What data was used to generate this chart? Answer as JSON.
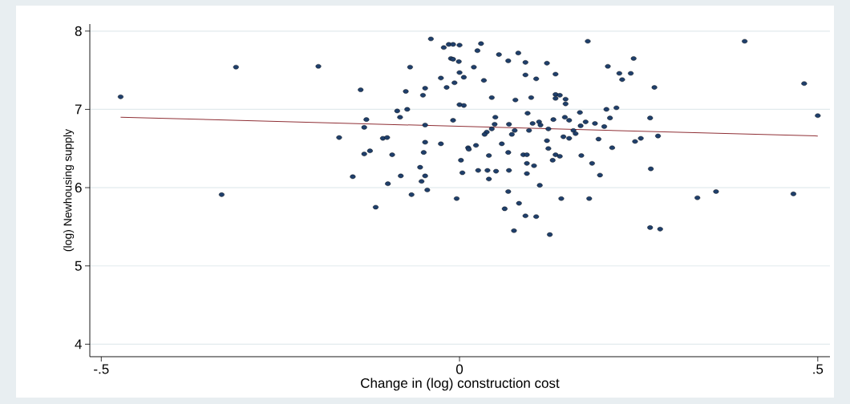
{
  "chart_data": {
    "type": "scatter",
    "xlabel": "Change in (log) construction cost",
    "ylabel": "(log) Newhousing supply",
    "xlim": [
      -0.516,
      0.517
    ],
    "ylim": [
      3.84,
      8.09
    ],
    "xticks": [
      {
        "value": -0.5,
        "label": "-.5"
      },
      0,
      {
        "value": 0.5,
        "label": ".5"
      }
    ],
    "yticks": [
      4,
      5,
      6,
      7,
      8
    ],
    "grid": "y",
    "series": [
      {
        "marker": "circle",
        "color": "#1f3f6b",
        "x": [
          -0.473,
          -0.312,
          -0.332,
          -0.197,
          -0.168,
          -0.149,
          -0.138,
          -0.13,
          -0.133,
          -0.133,
          -0.125,
          -0.117,
          -0.107,
          -0.101,
          -0.1,
          -0.094,
          -0.087,
          -0.083,
          -0.082,
          -0.073,
          -0.075,
          -0.069,
          -0.067,
          -0.055,
          -0.053,
          -0.051,
          -0.05,
          -0.048,
          -0.048,
          -0.048,
          -0.048,
          -0.045,
          -0.04,
          -0.026,
          -0.026,
          -0.022,
          -0.018,
          -0.015,
          -0.009,
          -0.012,
          -0.009,
          -0.007,
          -0.009,
          -0.004,
          0,
          -0.001,
          0,
          0.006,
          0,
          0.006,
          0.002,
          0.004,
          0.03,
          0.025,
          0.02,
          0.034,
          0.055,
          0.082,
          0.068,
          0.092,
          0.122,
          0.092,
          0.107,
          0.134,
          0.045,
          0.078,
          0.1,
          0.134,
          0.14,
          0.134,
          0.148,
          0.148,
          0.05,
          0.049,
          0.069,
          0.095,
          0.102,
          0.111,
          0.113,
          0.131,
          0.147,
          0.124,
          0.097,
          0.045,
          0.038,
          0.035,
          0.077,
          0.073,
          0.145,
          0.122,
          0.059,
          0.023,
          0.012,
          0.013,
          0.068,
          0.041,
          0.089,
          0.094,
          0.124,
          0.134,
          0.14,
          0.13,
          0.094,
          0.104,
          0.026,
          0.039,
          0.051,
          0.069,
          0.094,
          0.041,
          0.112,
          0.068,
          0.142,
          0.083,
          0.063,
          0.092,
          0.107,
          0.076,
          0.126,
          0.179,
          0.243,
          0.207,
          0.223,
          0.239,
          0.227,
          0.272,
          0.205,
          0.219,
          0.168,
          0.153,
          0.21,
          0.266,
          0.176,
          0.189,
          0.169,
          0.202,
          0.159,
          0.162,
          0.153,
          0.194,
          0.213,
          0.245,
          0.253,
          0.277,
          0.17,
          0.185,
          0.196,
          0.267,
          0.181,
          0.266,
          0.28,
          0.398,
          0.481,
          0.5,
          0.332,
          0.358,
          0.466
        ],
        "values": [
          7.16,
          7.54,
          5.91,
          7.55,
          6.64,
          6.14,
          7.25,
          6.87,
          6.77,
          6.43,
          6.47,
          5.75,
          6.63,
          6.64,
          6.05,
          6.42,
          6.98,
          6.9,
          6.15,
          7.0,
          7.23,
          7.54,
          5.91,
          6.26,
          6.08,
          7.18,
          6.45,
          7.27,
          6.8,
          6.58,
          6.15,
          5.97,
          7.9,
          7.4,
          6.56,
          7.79,
          7.28,
          7.83,
          7.83,
          7.65,
          7.64,
          7.34,
          6.86,
          5.86,
          7.82,
          7.61,
          7.47,
          7.41,
          7.06,
          7.05,
          6.35,
          6.19,
          7.84,
          7.75,
          7.54,
          7.37,
          7.7,
          7.72,
          7.62,
          7.6,
          7.59,
          7.44,
          7.39,
          7.45,
          7.15,
          7.12,
          7.15,
          7.19,
          7.18,
          7.14,
          7.13,
          7.07,
          6.9,
          6.81,
          6.81,
          6.95,
          6.82,
          6.84,
          6.8,
          6.87,
          6.9,
          6.75,
          6.73,
          6.75,
          6.71,
          6.68,
          6.73,
          6.68,
          6.65,
          6.6,
          6.56,
          6.54,
          6.51,
          6.49,
          6.45,
          6.41,
          6.42,
          6.42,
          6.5,
          6.42,
          6.4,
          6.35,
          6.31,
          6.28,
          6.22,
          6.22,
          6.21,
          6.22,
          6.18,
          6.11,
          6.03,
          5.95,
          5.86,
          5.8,
          5.73,
          5.64,
          5.63,
          5.45,
          5.4,
          7.87,
          7.65,
          7.55,
          7.46,
          7.46,
          7.38,
          7.28,
          7.0,
          7.02,
          6.96,
          6.86,
          6.89,
          6.89,
          6.84,
          6.82,
          6.79,
          6.78,
          6.73,
          6.69,
          6.63,
          6.62,
          6.51,
          6.59,
          6.63,
          6.66,
          6.41,
          6.31,
          6.16,
          6.24,
          5.86,
          5.49,
          5.47,
          7.87,
          7.33,
          6.92,
          5.87,
          5.95,
          5.92
        ]
      },
      {
        "type": "line",
        "marker": "none",
        "color": "#8f2f35",
        "x": [
          -0.473,
          0.5
        ],
        "values": [
          6.9,
          6.66
        ]
      }
    ]
  }
}
